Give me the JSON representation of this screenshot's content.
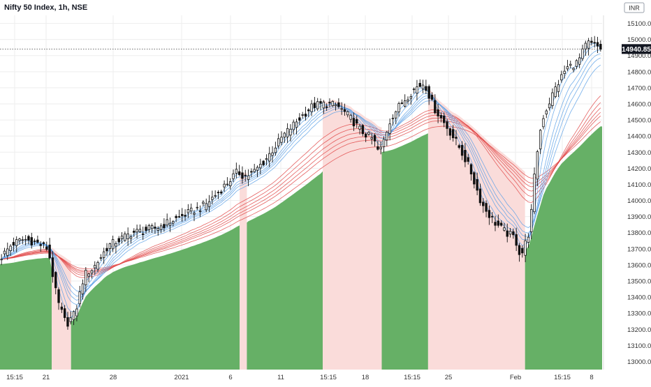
{
  "chart_data": {
    "type": "candlestick",
    "title": "Nifty 50 Index, 1h, NSE",
    "currency": "INR",
    "last_price": "14940.85",
    "ylim": [
      12950,
      15150
    ],
    "y_ticks": [
      "15100.00",
      "15000.00",
      "14900.00",
      "14800.00",
      "14700.00",
      "14600.00",
      "14500.00",
      "14400.00",
      "14300.00",
      "14200.00",
      "14100.00",
      "14000.00",
      "13900.00",
      "13800.00",
      "13700.00",
      "13600.00",
      "13500.00",
      "13400.00",
      "13300.00",
      "13200.00",
      "13100.00",
      "13000.00"
    ],
    "x_ticks": [
      "15:15",
      "21",
      "28",
      "2021",
      "6",
      "11",
      "15:15",
      "18",
      "15:15",
      "25",
      "Feb",
      "15:15",
      "8"
    ],
    "colors": {
      "bull_fill": "#66b066",
      "bear_fill": "#fadcda",
      "fast_ma": "#5aa0e6",
      "slow_ma": "#e04545",
      "candle": "#111111",
      "grid": "#eeeeee",
      "last_price_line": "#555555"
    },
    "regime_segments": [
      {
        "state": "bull",
        "from_pct": 0.0,
        "to_pct": 8.6
      },
      {
        "state": "bear",
        "from_pct": 8.6,
        "to_pct": 11.8
      },
      {
        "state": "bull",
        "from_pct": 11.8,
        "to_pct": 39.8
      },
      {
        "state": "bear",
        "from_pct": 39.8,
        "to_pct": 41.0
      },
      {
        "state": "bull",
        "from_pct": 41.0,
        "to_pct": 53.6
      },
      {
        "state": "bear",
        "from_pct": 53.6,
        "to_pct": 63.4
      },
      {
        "state": "bull",
        "from_pct": 63.4,
        "to_pct": 71.1
      },
      {
        "state": "bear",
        "from_pct": 71.1,
        "to_pct": 87.2
      },
      {
        "state": "bull",
        "from_pct": 87.2,
        "to_pct": 100.0
      }
    ],
    "price_path": [
      [
        0,
        13640
      ],
      [
        2,
        13730
      ],
      [
        4,
        13760
      ],
      [
        6,
        13740
      ],
      [
        8,
        13700
      ],
      [
        9.5,
        13380
      ],
      [
        11,
        13230
      ],
      [
        12.5,
        13300
      ],
      [
        14,
        13540
      ],
      [
        15.5,
        13580
      ],
      [
        18,
        13720
      ],
      [
        22,
        13800
      ],
      [
        26,
        13830
      ],
      [
        30,
        13900
      ],
      [
        34,
        13970
      ],
      [
        37,
        14080
      ],
      [
        39.5,
        14180
      ],
      [
        40.5,
        14150
      ],
      [
        42,
        14170
      ],
      [
        44,
        14250
      ],
      [
        47,
        14400
      ],
      [
        50,
        14520
      ],
      [
        52,
        14590
      ],
      [
        54,
        14600
      ],
      [
        56,
        14590
      ],
      [
        58,
        14520
      ],
      [
        60,
        14430
      ],
      [
        62,
        14380
      ],
      [
        63,
        14290
      ],
      [
        65,
        14520
      ],
      [
        67,
        14620
      ],
      [
        69,
        14700
      ],
      [
        70.5,
        14730
      ],
      [
        72,
        14580
      ],
      [
        74,
        14470
      ],
      [
        76,
        14350
      ],
      [
        78,
        14200
      ],
      [
        80,
        13980
      ],
      [
        82,
        13870
      ],
      [
        84,
        13800
      ],
      [
        85.5,
        13770
      ],
      [
        86.5,
        13650
      ],
      [
        88,
        13820
      ],
      [
        89,
        14250
      ],
      [
        90,
        14500
      ],
      [
        92,
        14680
      ],
      [
        94,
        14820
      ],
      [
        96,
        14860
      ],
      [
        97.5,
        14980
      ],
      [
        99,
        14960
      ],
      [
        100,
        14940
      ]
    ]
  }
}
